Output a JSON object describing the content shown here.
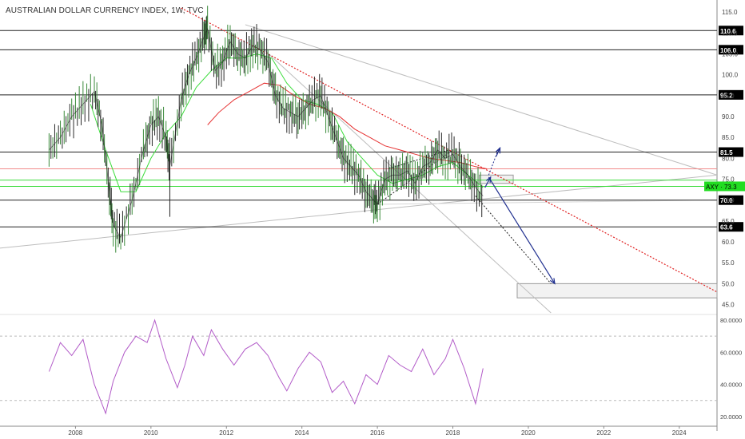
{
  "title": "AUSTRALIAN DOLLAR CURRENCY INDEX, 1W, TVC",
  "colors": {
    "price": "#1a1a1a",
    "sma_fast": "#3cdc3c",
    "sma_slow": "#e63232",
    "rsi": "#b25bc8",
    "trendline_red": "#e02020",
    "arrow_blue": "#1f2f8f",
    "gray_line": "#bdbdbd",
    "hline": "#222222",
    "green_band": "#3cdc3c",
    "red_hline": "#f28b8b",
    "label_bg": "#000000",
    "current_bg": "#22dd22"
  },
  "chart_data": [
    {
      "type": "line",
      "title": "AUSTRALIAN DOLLAR CURRENCY INDEX, 1W, TVC",
      "x_ticks": [
        "2008",
        "2010",
        "2012",
        "2014",
        "2016",
        "2018",
        "2020",
        "2022",
        "2024"
      ],
      "y_ticks": [
        "45.0",
        "50.0",
        "55.0",
        "60.0",
        "65.0",
        "70.0",
        "75.0",
        "80.0",
        "85.0",
        "90.0",
        "95.0",
        "100.0",
        "105.0",
        "110.0",
        "115.0"
      ],
      "ylim": [
        43,
        116
      ],
      "xlim": [
        2006.0,
        2025.0
      ],
      "level_labels": [
        "110.6",
        "106.0",
        "95.2",
        "81.5",
        "70.0",
        "63.6"
      ],
      "levels": [
        110.6,
        106.0,
        95.2,
        81.5,
        70.0,
        63.6
      ],
      "current_label": "AXY · 73.3",
      "current_value": 73.3,
      "series": [
        {
          "x": [
            2007.3,
            2007.6,
            2007.9,
            2008.2,
            2008.5,
            2008.7,
            2008.9,
            2009.0,
            2009.2,
            2009.5,
            2009.8,
            2010.0,
            2010.2,
            2010.4,
            2010.5,
            2010.8,
            2011.0,
            2011.2,
            2011.4,
            2011.5,
            2011.7,
            2011.9,
            2012.1,
            2012.3,
            2012.5,
            2012.7,
            2012.9,
            2013.1,
            2013.3,
            2013.5,
            2013.7,
            2013.9,
            2014.1,
            2014.3,
            2014.5,
            2014.7,
            2014.9,
            2015.1,
            2015.3,
            2015.5,
            2015.7,
            2015.9,
            2016.0,
            2016.2,
            2016.4,
            2016.6,
            2016.8,
            2017.0,
            2017.2,
            2017.4,
            2017.6,
            2017.8,
            2018.0,
            2018.2,
            2018.4,
            2018.6,
            2018.8
          ],
          "values": [
            82,
            85,
            90,
            93,
            96,
            88,
            72,
            64,
            61,
            70,
            82,
            88,
            90,
            85,
            78,
            94,
            100,
            104,
            109,
            111,
            101,
            103,
            108,
            105,
            104,
            107,
            106,
            103,
            95,
            92,
            91,
            90,
            92,
            94,
            95,
            90,
            85,
            80,
            78,
            76,
            72,
            70,
            69,
            75,
            76,
            76,
            77,
            74,
            78,
            79,
            82,
            80,
            81,
            78,
            76,
            73,
            71
          ]
        },
        {
          "x": [
            2008.4,
            2008.8,
            2009.2,
            2009.6,
            2010.0,
            2010.4,
            2010.8,
            2011.2,
            2011.6,
            2012.0,
            2012.4,
            2012.8,
            2013.2,
            2013.6,
            2014.0,
            2014.4,
            2014.8,
            2015.2,
            2015.6,
            2016.0,
            2016.4,
            2016.8,
            2017.2,
            2017.6,
            2018.0,
            2018.4,
            2018.8
          ],
          "values": [
            93,
            82,
            72,
            72,
            80,
            86,
            90,
            97,
            101,
            104,
            104,
            105,
            104,
            98,
            94,
            93,
            91,
            84,
            80,
            76,
            74,
            75,
            76,
            78,
            79,
            76,
            73
          ]
        },
        {
          "x": [
            2011.5,
            2011.8,
            2012.2,
            2012.6,
            2013.0,
            2013.4,
            2013.8,
            2014.2,
            2014.6,
            2015.0,
            2015.4,
            2015.8,
            2016.2,
            2016.6,
            2017.0,
            2017.4,
            2017.8,
            2018.2,
            2018.6,
            2018.9
          ],
          "values": [
            88,
            91,
            94,
            96,
            98,
            97.5,
            95,
            93,
            92,
            90,
            87,
            85,
            83,
            82,
            81,
            80,
            79.5,
            79,
            78,
            77.5
          ]
        }
      ]
    },
    {
      "type": "line",
      "title": "",
      "y_ticks": [
        "20.0000",
        "40.0000",
        "60.0000",
        "80.0000"
      ],
      "ylim": [
        15,
        82
      ],
      "series": [
        {
          "x": [
            2007.3,
            2007.6,
            2007.9,
            2008.2,
            2008.5,
            2008.8,
            2009.0,
            2009.3,
            2009.6,
            2009.9,
            2010.1,
            2010.4,
            2010.7,
            2010.9,
            2011.1,
            2011.4,
            2011.6,
            2011.9,
            2012.2,
            2012.5,
            2012.8,
            2013.1,
            2013.4,
            2013.6,
            2013.9,
            2014.2,
            2014.5,
            2014.8,
            2015.1,
            2015.4,
            2015.7,
            2016.0,
            2016.3,
            2016.6,
            2016.9,
            2017.2,
            2017.5,
            2017.8,
            2018.0,
            2018.3,
            2018.6,
            2018.8
          ],
          "values": [
            48,
            66,
            58,
            68,
            40,
            22,
            42,
            60,
            70,
            66,
            80,
            56,
            38,
            52,
            70,
            58,
            74,
            62,
            52,
            62,
            66,
            58,
            44,
            36,
            50,
            60,
            54,
            35,
            42,
            28,
            46,
            40,
            58,
            52,
            48,
            62,
            46,
            56,
            68,
            50,
            28,
            50
          ]
        }
      ]
    }
  ]
}
